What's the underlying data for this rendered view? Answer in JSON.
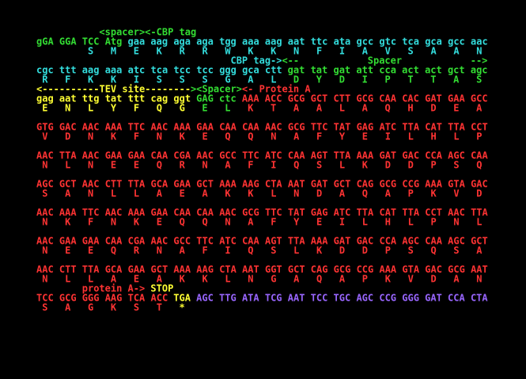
{
  "blocks": [
    {
      "annotation": [
        {
          "text": "<spacer>",
          "color": "#33dd33"
        },
        {
          "text": "<-CBP tag",
          "color": "#33dd33"
        }
      ],
      "sequence": [
        {
          "text": "gGA GGA TCC Atg",
          "color": "#33dd33"
        },
        {
          "text": "gaa aag aga aga tgg aaa aag aat ttc ata gcc gtc tca gca gcc aac",
          "color": "#33dddd"
        }
      ],
      "translation": [
        {
          "text": "S   M   E   K   R   R   W   K   K   N   F   I   A   V   S   A   A   N",
          "color": "#33dddd"
        }
      ]
    },
    {
      "annotation": [
        {
          "text": "CBP tag->",
          "color": "#33dddd"
        },
        {
          "text": "<--",
          "color": "#33dd33"
        },
        {
          "text": "Spacer",
          "color": "#33dd33"
        },
        {
          "text": "-->",
          "color": "#33dd33"
        }
      ],
      "sequence": [
        {
          "text": "cgc ttt aag aaa atc tca tcc tcc ggg gca ctt",
          "color": "#33dddd"
        },
        {
          "text": "gat tat gat att cca act act gct agc",
          "color": "#33dd33"
        }
      ],
      "translation": [
        {
          "text": "R   F   K   K   I   S   S   S   G   A   L",
          "color": "#33dddd"
        },
        {
          "text": "D   Y   D   I   P   T   T   A   S",
          "color": "#33dd33"
        }
      ]
    },
    {
      "annotation": [
        {
          "text": "<----------TEV site--------",
          "color": "#ffff33"
        },
        {
          "text": "><Spacer>",
          "color": "#33dd33"
        },
        {
          "text": "<- Protein A",
          "color": "#ff3333"
        }
      ],
      "sequence": [
        {
          "text": "gag aat ttg tat ttt cag ggt",
          "color": "#ffff33"
        },
        {
          "text": "GAG ctc",
          "color": "#33dd33"
        },
        {
          "text": "AAA ACC GCG GCT CTT GCG CAA CAC GAT GAA GCC",
          "color": "#ff3333"
        }
      ],
      "translation": [
        {
          "text": "E   N   L   Y   F   Q   G",
          "color": "#ffff33"
        },
        {
          "text": "E   L",
          "color": "#33dd33"
        },
        {
          "text": "K   T   A   A   L   A   Q   H   D   E   A",
          "color": "#ff3333"
        }
      ]
    },
    {
      "sequence": [
        {
          "text": "GTG GAC AAC AAA TTC AAC AAA GAA CAA CAA AAC GCG TTC TAT GAG ATC TTA CAT TTA CCT",
          "color": "#ff3333"
        }
      ],
      "translation": [
        {
          "text": "V   D   N   K   F   N   K   E   Q   Q   N   A   F   Y   E   I   L   H   L   P",
          "color": "#ff3333"
        }
      ]
    },
    {
      "sequence": [
        {
          "text": "AAC TTA AAC GAA GAA CAA CGA AAC GCC TTC ATC CAA AGT TTA AAA GAT GAC CCA AGC CAA",
          "color": "#ff3333"
        }
      ],
      "translation": [
        {
          "text": "N   L   N   E   E   Q   R   N   A   F   I   Q   S   L   K   D   D   P   S   Q",
          "color": "#ff3333"
        }
      ]
    },
    {
      "sequence": [
        {
          "text": "AGC GCT AAC CTT TTA GCA GAA GCT AAA AAG CTA AAT GAT GCT CAG GCG CCG AAA GTA GAC",
          "color": "#ff3333"
        }
      ],
      "translation": [
        {
          "text": "S   A   N   L   L   A   E   A   K   K   L   N   D   A   Q   A   P   K   V   D",
          "color": "#ff3333"
        }
      ]
    },
    {
      "sequence": [
        {
          "text": "AAC AAA TTC AAC AAA GAA CAA CAA AAC GCG TTC TAT GAG ATC TTA CAT TTA CCT AAC TTA",
          "color": "#ff3333"
        }
      ],
      "translation": [
        {
          "text": "N   K   F   N   K   E   Q   Q   N   A   F   Y   E   I   L   H   L   P   N   L",
          "color": "#ff3333"
        }
      ]
    },
    {
      "sequence": [
        {
          "text": "AAC GAA GAA CAA CGA AAC GCC TTC ATC CAA AGT TTA AAA GAT GAC CCA AGC CAA AGC GCT",
          "color": "#ff3333"
        }
      ],
      "translation": [
        {
          "text": "N   E   E   Q   R   N   A   F   I   Q   S   L   K   D   D   P   S   Q   S   A",
          "color": "#ff3333"
        }
      ]
    },
    {
      "sequence": [
        {
          "text": "AAC CTT TTA GCA GAA GCT AAA AAG CTA AAT GGT GCT CAG GCG CCG AAA GTA GAC GCG AAT",
          "color": "#ff3333"
        }
      ],
      "translation": [
        {
          "text": "N   L   L   A   E   A   K   K   L   N   G   A   Q   A   P   K   V   D   A   N",
          "color": "#ff3333"
        }
      ]
    },
    {
      "annotation": [
        {
          "text": "protein A->",
          "color": "#ff3333"
        },
        {
          "text": "STOP",
          "color": "#ffff33"
        }
      ],
      "sequence": [
        {
          "text": "TCC GCG GGG AAG TCA ACC",
          "color": "#ff3333"
        },
        {
          "text": "TGA",
          "color": "#ffff33"
        },
        {
          "text": "AGC TTG ATA TCG AAT TCC TGC AGC CCG GGG GAT CCA CTA",
          "color": "#9966ff"
        }
      ],
      "translation": [
        {
          "text": "S   A   G   K   S   T",
          "color": "#ff3333"
        },
        {
          "text": "*",
          "color": "#ffff33"
        }
      ]
    }
  ]
}
